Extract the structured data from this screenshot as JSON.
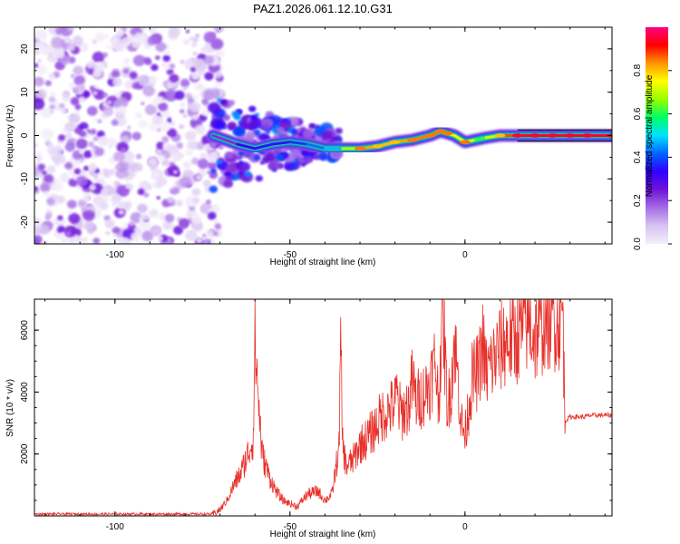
{
  "chart_data": [
    {
      "type": "heatmap",
      "title": "PAZ1.2026.061.12.10.G31",
      "xlabel": "Height of straight line (km)",
      "ylabel": "Frequency (Hz)",
      "xlim": [
        -123,
        42
      ],
      "ylim": [
        -25,
        25
      ],
      "xticks": [
        -100,
        -50,
        0
      ],
      "yticks": [
        -20,
        -10,
        0,
        10,
        20
      ],
      "colorbar": {
        "label": "Normalized spectral amplitude",
        "range": [
          0,
          1
        ],
        "ticks": [
          0.0,
          0.2,
          0.4,
          0.6,
          0.8
        ],
        "colormap": [
          "#f4eefa",
          "#d8c3f2",
          "#a56ee6",
          "#6f14d8",
          "#3200ff",
          "#0064ff",
          "#00e1ff",
          "#00ff64",
          "#96ff00",
          "#ffff00",
          "#ff9600",
          "#ff0000",
          "#ff0080"
        ]
      },
      "ridge": {
        "description_units": "frequency centre (Hz) vs height (km)",
        "x": [
          -72,
          -65,
          -60,
          -55,
          -50,
          -45,
          -40,
          -35,
          -30,
          -25,
          -20,
          -15,
          -10,
          -7,
          -5,
          -3,
          0,
          3,
          6,
          10,
          15,
          20,
          25,
          30,
          35,
          42
        ],
        "y": [
          0,
          -2,
          -3,
          -2,
          -1.5,
          -2,
          -3,
          -3,
          -3,
          -2.5,
          -1.5,
          -1,
          0,
          1,
          0.5,
          0,
          -1.5,
          -1,
          -0.5,
          0,
          0,
          0,
          0,
          0,
          0,
          0
        ],
        "amplitude": [
          0.15,
          0.3,
          0.35,
          0.35,
          0.35,
          0.4,
          0.45,
          0.5,
          0.85,
          0.8,
          0.8,
          0.85,
          0.85,
          0.85,
          0.85,
          0.6,
          0.85,
          0.6,
          0.6,
          0.8,
          0.95,
          0.95,
          0.95,
          0.95,
          0.95,
          0.95
        ]
      }
    },
    {
      "type": "line",
      "xlabel": "Height of straight line (km)",
      "ylabel": "SNR (10 * v/v)",
      "xlim": [
        -123,
        42
      ],
      "ylim": [
        0,
        7000
      ],
      "xticks": [
        -100,
        -50,
        0
      ],
      "yticks": [
        2000,
        4000,
        6000
      ],
      "color": "#e8302a",
      "series": [
        {
          "name": "SNR",
          "x": [
            -123,
            -110,
            -100,
            -90,
            -80,
            -72,
            -70,
            -68,
            -66,
            -64,
            -62,
            -60.5,
            -60,
            -58,
            -56,
            -54,
            -52,
            -50,
            -48,
            -45,
            -42,
            -40,
            -38,
            -36,
            -35.5,
            -35,
            -34,
            -32,
            -30,
            -28,
            -26,
            -24,
            -22,
            -20,
            -19.5,
            -19,
            -18,
            -16,
            -15,
            -14,
            -12,
            -10,
            -8.5,
            -7.5,
            -6.5,
            -5,
            -4,
            -3,
            -1,
            0,
            2,
            4,
            5,
            6,
            8,
            10,
            12,
            14,
            16,
            18,
            20,
            22,
            24,
            26,
            27,
            28,
            28.5,
            29,
            30,
            32,
            34,
            36,
            38,
            40,
            42
          ],
          "y": [
            60,
            60,
            60,
            60,
            60,
            60,
            200,
            500,
            1000,
            1400,
            2000,
            2500,
            5600,
            2000,
            1300,
            800,
            500,
            400,
            300,
            700,
            800,
            500,
            700,
            2200,
            5600,
            2400,
            1600,
            1800,
            2300,
            2500,
            2800,
            3200,
            3400,
            3600,
            4000,
            3500,
            3300,
            3600,
            4400,
            3700,
            3900,
            4300,
            5000,
            3600,
            7000,
            3500,
            4200,
            5700,
            3000,
            2600,
            4400,
            4700,
            5600,
            4600,
            5000,
            5400,
            5700,
            5700,
            6000,
            6300,
            5800,
            6200,
            6500,
            6400,
            6400,
            6600,
            3100,
            3100,
            3200,
            3200,
            3200,
            3250,
            3250,
            3250,
            3250
          ]
        }
      ]
    }
  ]
}
